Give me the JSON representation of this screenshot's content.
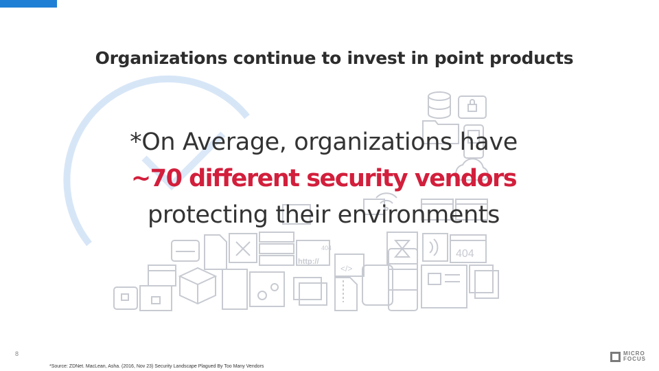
{
  "slide": {
    "title": "Organizations continue to invest in point products",
    "stat_line1": "*On Average, organizations have",
    "stat_highlight": "~70 different security vendors",
    "stat_line3": "protecting their environments",
    "page_number": "8",
    "footnote": "*Source: ZDNet. MacLean, Asha. (2016, Nov 23) Security Landscape Plagued By Too Many Vendors",
    "logo_text": "MICRO FOCUS"
  },
  "art": {
    "icon_label_404_small": "404",
    "icon_label_404_large": "404",
    "icon_label_http": "http://",
    "icon_label_code": "</>"
  },
  "colors": {
    "accent": "#1f7fd4",
    "highlight": "#d21f3c",
    "text": "#333333",
    "icon_gray": "#c7cad1",
    "ring_blue": "#d7e6f7"
  }
}
